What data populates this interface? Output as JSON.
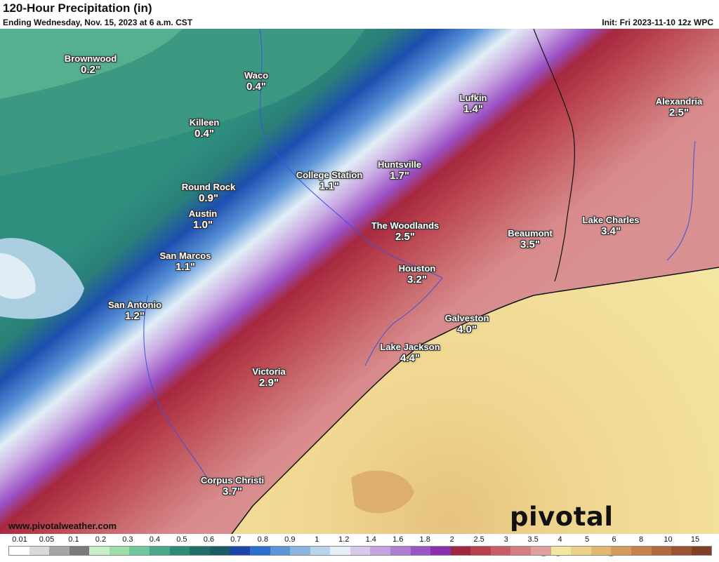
{
  "header": {
    "title": "120-Hour Precipitation (in)",
    "subtitle": "Ending Wednesday, Nov. 15, 2023 at 6 a.m. CST",
    "init": "Init: Fri 2023-11-10 12z WPC"
  },
  "cities": [
    {
      "name": "Brownwood",
      "value": "0.2\""
    },
    {
      "name": "Waco",
      "value": "0.4\""
    },
    {
      "name": "Killeen",
      "value": "0.4\""
    },
    {
      "name": "Lufkin",
      "value": "1.4\""
    },
    {
      "name": "Alexandria",
      "value": "2.5\""
    },
    {
      "name": "College Station",
      "value": "1.1\""
    },
    {
      "name": "Huntsville",
      "value": "1.7\""
    },
    {
      "name": "Round Rock",
      "value": "0.9\""
    },
    {
      "name": "Austin",
      "value": "1.0\""
    },
    {
      "name": "The Woodlands",
      "value": "2.5\""
    },
    {
      "name": "Beaumont",
      "value": "3.5\""
    },
    {
      "name": "Lake Charles",
      "value": "3.4\""
    },
    {
      "name": "San Marcos",
      "value": "1.1\""
    },
    {
      "name": "Houston",
      "value": "3.2\""
    },
    {
      "name": "San Antonio",
      "value": "1.2\""
    },
    {
      "name": "Galveston",
      "value": "4.0\""
    },
    {
      "name": "Lake Jackson",
      "value": "4.4\""
    },
    {
      "name": "Victoria",
      "value": "2.9\""
    },
    {
      "name": "Corpus Christi",
      "value": "3.7\""
    }
  ],
  "footer": {
    "website": "www.pivotalweather.com",
    "brand": "pivotal weather"
  },
  "colorbar": {
    "labels": [
      "0.01",
      "0.05",
      "0.1",
      "0.2",
      "0.3",
      "0.4",
      "0.5",
      "0.6",
      "0.7",
      "0.8",
      "0.9",
      "1",
      "1.2",
      "1.4",
      "1.6",
      "1.8",
      "2",
      "2.5",
      "3",
      "3.5",
      "4",
      "5",
      "6",
      "8",
      "10",
      "15"
    ],
    "colors": [
      "#ffffff",
      "#d9d9d9",
      "#a6a6a6",
      "#7a7a7a",
      "#c8f0c8",
      "#9ddfa8",
      "#6fc79a",
      "#4aa888",
      "#2e8a78",
      "#226f6a",
      "#1a5c66",
      "#1d44a8",
      "#2d6fd0",
      "#5b95d8",
      "#8bb4e0",
      "#b8d3ea",
      "#e3eef6",
      "#d8c8ec",
      "#c5a3e0",
      "#b07ed3",
      "#9a57c4",
      "#8a2fb0",
      "#a1263f",
      "#b9404c",
      "#c85f66",
      "#d57e82",
      "#e0a0a0",
      "#f3e6a0",
      "#ecd289",
      "#e0b870",
      "#d49b5b",
      "#c6824a",
      "#b26a3c",
      "#9a5432",
      "#7e4126"
    ]
  }
}
